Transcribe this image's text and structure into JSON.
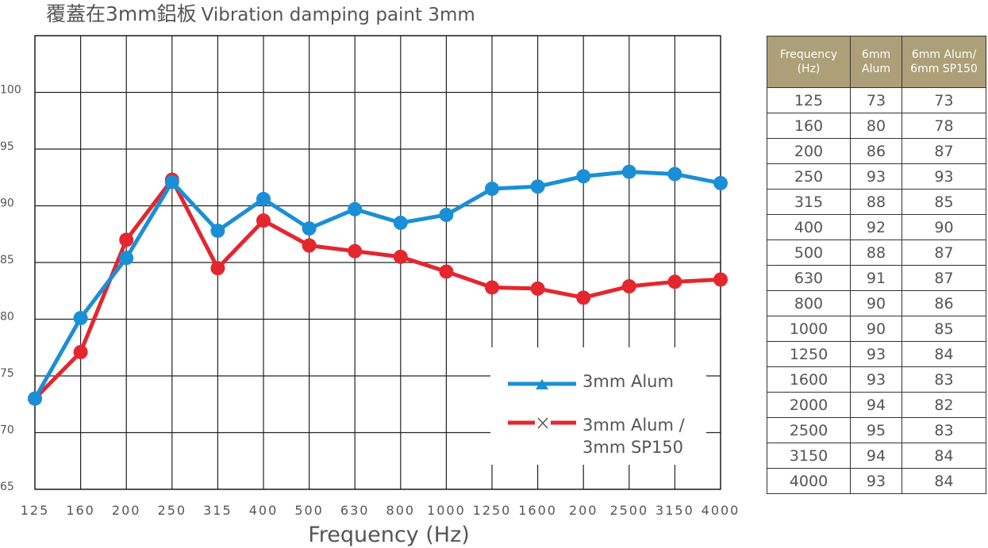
{
  "title": {
    "zh": "覆蓋在3mm鋁板",
    "en": "Vibration damping paint 3mm"
  },
  "chart_data": {
    "type": "line",
    "categories": [
      "125",
      "160",
      "200",
      "250",
      "315",
      "400",
      "500",
      "630",
      "800",
      "1000",
      "1250",
      "1600",
      "200",
      "2500",
      "3150",
      "4000"
    ],
    "xlabel": "Frequency (Hz)",
    "ylabel": "",
    "ylim": [
      65,
      105
    ],
    "yticks": [
      65,
      70,
      75,
      80,
      85,
      90,
      95,
      100
    ],
    "grid": true,
    "legend_position": "bottom-right",
    "series": [
      {
        "name": "3mm Alum",
        "color": "#1a8fd6",
        "marker": "triangle",
        "values": [
          73,
          80.1,
          85.4,
          92.1,
          87.8,
          90.6,
          88.0,
          89.7,
          88.5,
          89.2,
          91.5,
          91.7,
          92.6,
          93.0,
          92.8,
          92.0
        ]
      },
      {
        "name": "3mm Alum / 3mm SP150",
        "color": "#e4262f",
        "marker": "x",
        "values": [
          73,
          77.1,
          87.0,
          92.3,
          84.5,
          88.7,
          86.5,
          86.0,
          85.5,
          84.2,
          82.8,
          82.7,
          81.9,
          82.9,
          83.3,
          83.5
        ]
      }
    ]
  },
  "table": {
    "headers": [
      "Frequency (Hz)",
      "6mm Alum",
      "6mm Alum/ 6mm SP150"
    ],
    "rows": [
      [
        "125",
        "73",
        "73"
      ],
      [
        "160",
        "80",
        "78"
      ],
      [
        "200",
        "86",
        "87"
      ],
      [
        "250",
        "93",
        "93"
      ],
      [
        "315",
        "88",
        "85"
      ],
      [
        "400",
        "92",
        "90"
      ],
      [
        "500",
        "88",
        "87"
      ],
      [
        "630",
        "91",
        "87"
      ],
      [
        "800",
        "90",
        "86"
      ],
      [
        "1000",
        "90",
        "85"
      ],
      [
        "1250",
        "93",
        "84"
      ],
      [
        "1600",
        "93",
        "83"
      ],
      [
        "2000",
        "94",
        "82"
      ],
      [
        "2500",
        "95",
        "83"
      ],
      [
        "3150",
        "94",
        "84"
      ],
      [
        "4000",
        "93",
        "84"
      ]
    ]
  }
}
